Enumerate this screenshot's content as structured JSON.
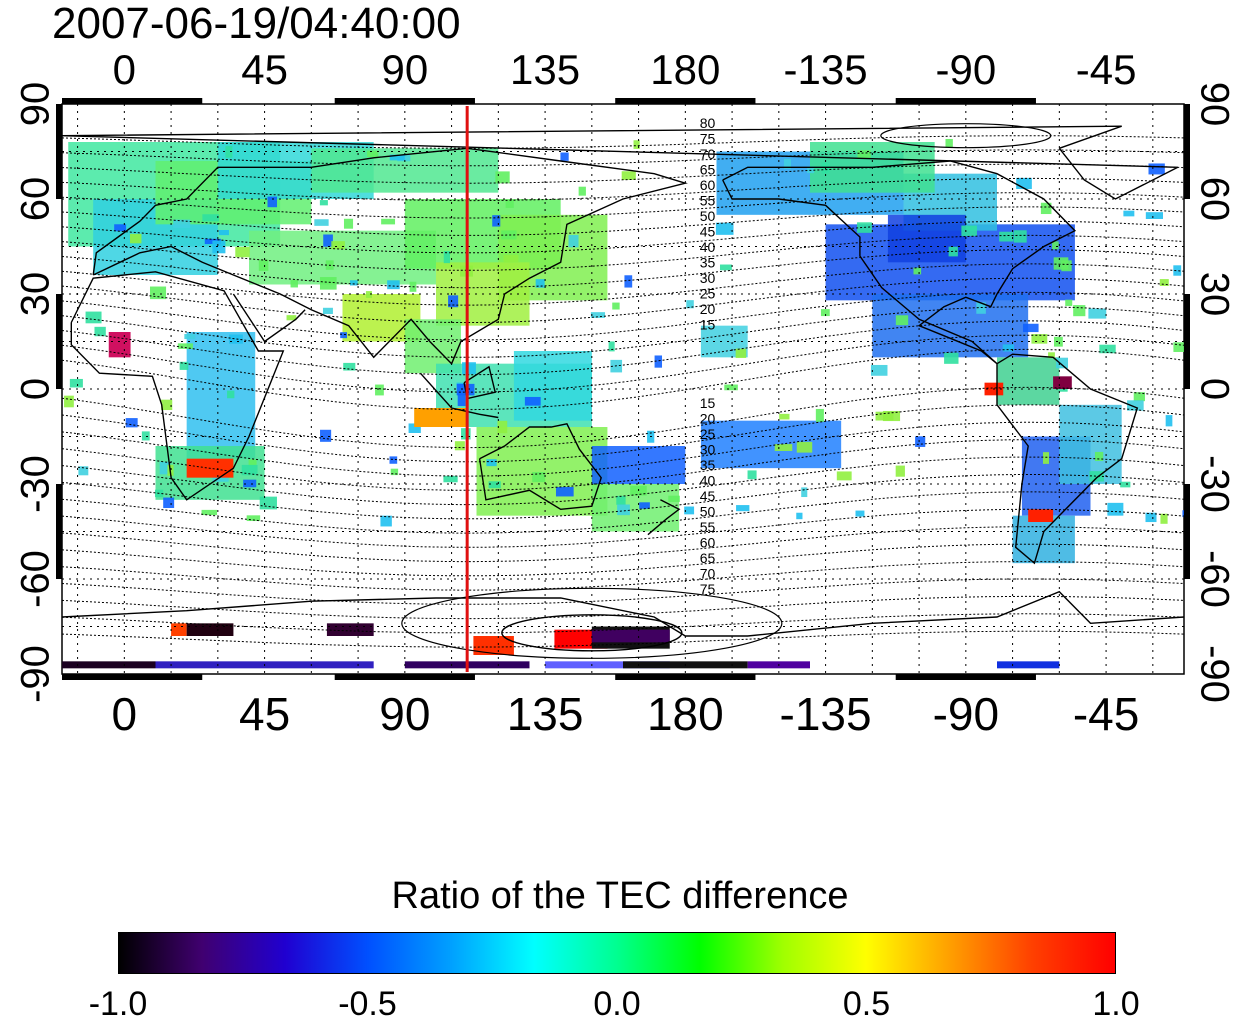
{
  "title": "2007-06-19/04:40:00",
  "map": {
    "lon_ticks_top": [
      "0",
      "45",
      "90",
      "135",
      "180",
      "-135",
      "-90",
      "-45"
    ],
    "lon_ticks_bottom": [
      "0",
      "45",
      "90",
      "135",
      "180",
      "-135",
      "-90",
      "-45"
    ],
    "lat_ticks_left": [
      "90",
      "60",
      "30",
      "0",
      "-30",
      "-60",
      "-90"
    ],
    "lat_ticks_right": [
      "90",
      "60",
      "30",
      "0",
      "-30",
      "-60",
      "-90"
    ],
    "lon_range": [
      -20,
      340
    ],
    "lat_range": [
      -90,
      90
    ],
    "terminator_longitude": 110,
    "terminator_color": "#e01010",
    "contour_labels_north": [
      "80",
      "75",
      "70",
      "65",
      "60",
      "55",
      "50",
      "45",
      "40",
      "35",
      "30",
      "25",
      "20",
      "15"
    ],
    "contour_labels_south": [
      "15",
      "20",
      "25",
      "30",
      "35",
      "40",
      "45",
      "50",
      "55",
      "60",
      "65",
      "70",
      "75"
    ]
  },
  "colorbar": {
    "title": "Ratio of the TEC difference",
    "ticks": [
      "-1.0",
      "-0.5",
      "0.0",
      "0.5",
      "1.0"
    ],
    "range": [
      -1.0,
      1.0
    ],
    "colors": [
      "#000000",
      "#400070",
      "#2000d0",
      "#0050ff",
      "#00a0ff",
      "#00ffff",
      "#00ff90",
      "#00ff00",
      "#a0ff00",
      "#ffff00",
      "#ffa000",
      "#ff4000",
      "#ff0000"
    ]
  }
}
